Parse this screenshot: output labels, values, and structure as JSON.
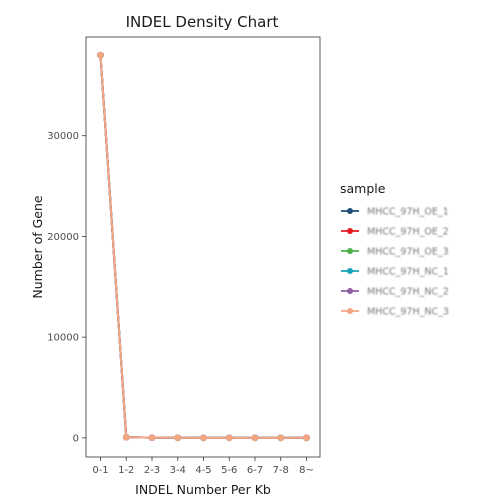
{
  "chart_data": {
    "type": "line",
    "title": "INDEL Density Chart",
    "xlabel": "INDEL Number Per Kb",
    "ylabel": "Number of Gene",
    "categories": [
      "0-1",
      "1-2",
      "2-3",
      "3-4",
      "4-5",
      "5-6",
      "6-7",
      "7-8",
      "8~"
    ],
    "y_ticks": [
      0,
      10000,
      20000,
      30000
    ],
    "y_tick_labels": [
      "0",
      "10000",
      "20000",
      "30000"
    ],
    "ylim": [
      -1900,
      39800
    ],
    "grid": false,
    "legend": {
      "title": "sample",
      "placement": "right",
      "entries": [
        {
          "label": "MHCC_97H_OE_1",
          "color": "#1f4e79"
        },
        {
          "label": "MHCC_97H_OE_2",
          "color": "#e31a1c"
        },
        {
          "label": "MHCC_97H_OE_3",
          "color": "#4daf4a"
        },
        {
          "label": "MHCC_97H_NC_1",
          "color": "#17a2b8"
        },
        {
          "label": "MHCC_97H_NC_2",
          "color": "#8e5ea2"
        },
        {
          "label": "MHCC_97H_NC_3",
          "color": "#f4a582"
        }
      ]
    },
    "series": [
      {
        "name": "MHCC_97H_OE_1",
        "color": "#1f4e79",
        "values": [
          38000,
          60,
          20,
          10,
          5,
          3,
          2,
          1,
          10
        ]
      },
      {
        "name": "MHCC_97H_OE_2",
        "color": "#e31a1c",
        "values": [
          38000,
          60,
          20,
          10,
          5,
          3,
          2,
          1,
          10
        ]
      },
      {
        "name": "MHCC_97H_OE_3",
        "color": "#4daf4a",
        "values": [
          38000,
          60,
          20,
          10,
          5,
          3,
          2,
          1,
          10
        ]
      },
      {
        "name": "MHCC_97H_NC_1",
        "color": "#17a2b8",
        "values": [
          38000,
          60,
          20,
          10,
          5,
          3,
          2,
          1,
          10
        ]
      },
      {
        "name": "MHCC_97H_NC_2",
        "color": "#8e5ea2",
        "values": [
          38000,
          60,
          20,
          10,
          5,
          3,
          2,
          1,
          10
        ]
      },
      {
        "name": "MHCC_97H_NC_3",
        "color": "#f4a582",
        "values": [
          38000,
          60,
          20,
          10,
          5,
          3,
          2,
          1,
          10
        ]
      }
    ]
  }
}
